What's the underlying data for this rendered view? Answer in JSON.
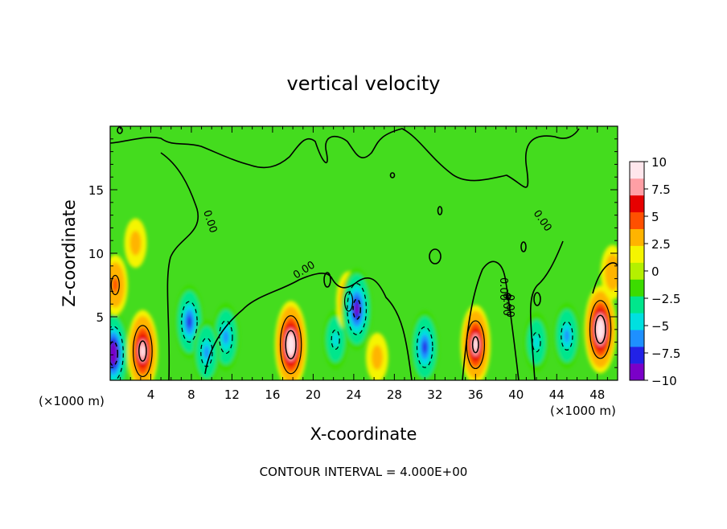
{
  "chart_data": {
    "type": "heatmap",
    "title": "vertical velocity",
    "xlabel": "X-coordinate",
    "ylabel": "Z-coordinate",
    "x_unit_left": "(×1000 m)",
    "x_unit_right": "(×1000 m)",
    "footer": "CONTOUR INTERVAL = 4.000E+00",
    "xlim": [
      0,
      50
    ],
    "ylim": [
      0,
      20
    ],
    "x_ticks": [
      4,
      8,
      12,
      16,
      20,
      24,
      28,
      32,
      36,
      40,
      44,
      48
    ],
    "x_tick_labels": [
      "4",
      "8",
      "12",
      "16",
      "20",
      "24",
      "28",
      "32",
      "36",
      "40",
      "44",
      "48"
    ],
    "y_ticks": [
      5,
      10,
      15
    ],
    "y_tick_labels": [
      "5",
      "10",
      "15"
    ],
    "colorbar": {
      "range": [
        -10,
        10
      ],
      "ticks": [
        10,
        7.5,
        5,
        2.5,
        0,
        -2.5,
        -5,
        -7.5,
        -10
      ],
      "tick_labels": [
        "10",
        "7.5",
        "5",
        "2.5",
        "0",
        "−2.5",
        "−5",
        "−7.5",
        "−10"
      ],
      "colors": [
        "#7a00c8",
        "#2222e6",
        "#1e90ff",
        "#00e0e0",
        "#00e68c",
        "#3cdc00",
        "#b4f000",
        "#f5f500",
        "#ffb400",
        "#ff5000",
        "#e60000",
        "#ff9fa5",
        "#ffe6ec"
      ]
    },
    "contour_labels": [
      "0.00",
      "0.00",
      "0.00",
      "0.00",
      "0.00",
      "0.00"
    ],
    "features": [
      {
        "x": 0.3,
        "z": 2.1,
        "w": -9.5
      },
      {
        "x": 3.2,
        "z": 2.3,
        "w": 9.0
      },
      {
        "x": 7.8,
        "z": 4.6,
        "w": -7.5
      },
      {
        "x": 11.4,
        "z": 3.4,
        "w": -6.5
      },
      {
        "x": 9.5,
        "z": 2.2,
        "w": -6.0
      },
      {
        "x": 17.8,
        "z": 2.8,
        "w": 10.0
      },
      {
        "x": 22.2,
        "z": 3.2,
        "w": -5.0
      },
      {
        "x": 23.5,
        "z": 6.2,
        "w": 5.0
      },
      {
        "x": 24.3,
        "z": 5.6,
        "w": -9.0
      },
      {
        "x": 26.3,
        "z": 1.8,
        "w": 3.0
      },
      {
        "x": 31.0,
        "z": 2.6,
        "w": -7.5
      },
      {
        "x": 36.0,
        "z": 2.8,
        "w": 8.5
      },
      {
        "x": 42.0,
        "z": 3.0,
        "w": -5.0
      },
      {
        "x": 45.0,
        "z": 3.5,
        "w": -6.0
      },
      {
        "x": 48.3,
        "z": 4.0,
        "w": 10.0
      },
      {
        "x": 2.5,
        "z": 10.8,
        "w": 3.0
      },
      {
        "x": 0.5,
        "z": 7.5,
        "w": 5.0
      },
      {
        "x": 49.5,
        "z": 8.5,
        "w": 4.0
      }
    ]
  }
}
